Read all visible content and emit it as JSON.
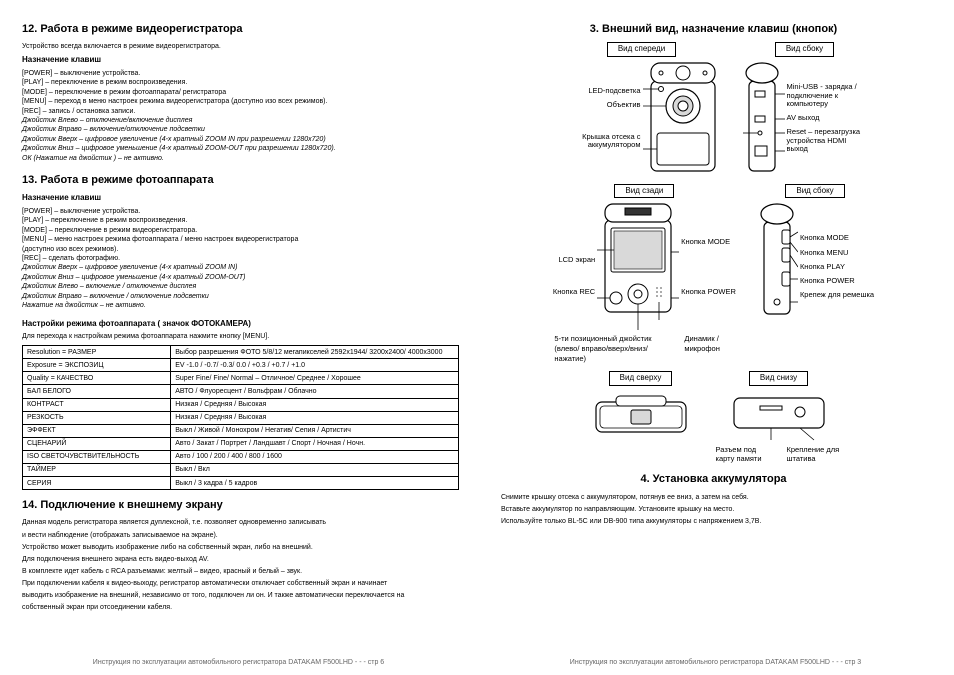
{
  "left": {
    "h12": "12. Работа в режиме видеорегистратора",
    "intro12": "Устройство всегда включается в режиме видеорегистратора.",
    "h12sub": "Назначение клавиш",
    "keys12": [
      "[POWER] – выключение устройства.",
      "[PLAY] – переключение в режим воспроизведения.",
      "[MODE] – переключение в режим фотоаппарата/ регистратора",
      "[MENU] – переход в меню настроек режима  видеорегистратора (доступно изо всех режимов).",
      "[REC] – запись / остановка записи.",
      "Джойстик Влево – отключение/включение дисплея",
      "Джойстик Вправо – включение/отключение подсветки",
      "Джойстик Вверх – цифровое увеличение (4-х кратный  ZOOM IN при разрешении 1280x720)",
      "Джойстик Вниз – цифровое уменьшение (4-х кратный ZOOM-OUT при разрешении 1280x720).",
      "ОК (Нажатие на джойстик ) – не активно."
    ],
    "h13": "13. Работа в режиме фотоаппарата",
    "h13sub": "Назначение клавиш",
    "keys13": [
      "[POWER] – выключение устройства.",
      "[PLAY] – переключение в режим воспроизведения.",
      "[MODE] – переключение в режим видеорегистратора.",
      "[MENU] – меню настроек режима фотоаппарата / меню настроек видеорегистратора",
      "(доступно изо всех режимов).",
      "[REC] – сделать фотографию.",
      "Джойстик Вверх – цифровое увеличение (4-х кратный  ZOOM IN)",
      "Джойстик Вниз – цифровое уменьшение (4-х кратный ZOOM-OUT)",
      "Джойстик Влево – включение / отключение дисплея",
      "Джойстик Вправо – включение / отключение подсветки",
      "Нажатие на джойстик – не активно."
    ],
    "h13b": "Настройки режима фотоаппарата ( значок ФОТОКАМЕРА)",
    "settingsIntro": "Для перехода к настройкам режима фотоаппарата нажмите кнопку [MENU].",
    "table": [
      [
        "Resolution = РАЗМЕР",
        "Выбор разрешения  ФОТО  5/8/12 мегапикселей 2592x1944/ 3200x2400/ 4000x3000"
      ],
      [
        "Exposure = ЭКСПОЗИЦ",
        "EV -1.0 / -0.7/ -0.3/ 0.0 / +0.3 / +0.7 / +1.0"
      ],
      [
        "Quality = КАЧЕСТВО",
        "Super Fine/ Fine/ Normal – Отличное/ Среднее / Хорошее"
      ],
      [
        "БАЛ БЕЛОГО",
        "АВТО / Флуоресцент / Вольфрам / Облачно"
      ],
      [
        "КОНТРАСТ",
        "Низкая / Средняя / Высокая"
      ],
      [
        "РЕЗКОСТЬ",
        "Низкая / Средняя / Высокая"
      ],
      [
        "ЭФФЕКТ",
        "Выкл / Живой / Монохром / Негатив/ Сепия / Артистич"
      ],
      [
        "СЦЕНАРИЙ",
        "Авто / Закат / Портрет / Ландшавт / Спорт / Ночная / Ночн."
      ],
      [
        "ISO СВЕТОЧУВСТВИТЕЛЬНОСТЬ",
        "Авто / 100 / 200 / 400 / 800 / 1600"
      ],
      [
        "ТАЙМЕР",
        "Выкл / Вкл"
      ],
      [
        "СЕРИЯ",
        "Выкл / 3 кадра / 5 кадров"
      ]
    ],
    "h14": "14.      Подключение к внешнему экрану",
    "p14": [
      "Данная модель регистратора является дуплексной, т.е. позволяет одновременно записывать",
      "и вести наблюдение (отображать записываемое на экране).",
      "Устройство может выводить изображение либо на собственный экран, либо на внешний.",
      "Для подключения внешнего экрана есть  видео-выход AV.",
      "В комплекте идет кабель с RCA разъемами: желтый – видео, красный и белый – звук.",
      "При подключении кабеля к видео-выходу, регистратор автоматически отключает собственный экран и начинает",
      "выводить изображение на внешний, независимо от того, подключен ли он. И также автоматически переключается на",
      "собственный экран при отсоединении кабеля."
    ],
    "footer": "Инструкция по эксплуатации автомобильного регистратора DATAKAM F500LHD   - - -  стр 6"
  },
  "right": {
    "h3": "3.    Внешний вид, назначение клавиш (кнопок)",
    "views": {
      "front": {
        "label": "Вид спереди",
        "left": [
          "LED-подсветка",
          "Объектив",
          "",
          "Крышка отсека с аккумулятором"
        ]
      },
      "side1": {
        "label": "Вид сбоку",
        "right": [
          "Mini-USB - зарядка / подключение к компьютеру",
          "AV выход",
          "Reset – перезагрузка устройства   HDMI выход"
        ]
      },
      "back": {
        "label": "Вид сзади",
        "left": [
          "",
          "LCD экран",
          "",
          "Кнопка REC"
        ],
        "bottom": [
          "5-ти позиционный джойстик (влево/ вправо/вверх/вниз/ нажатие)",
          "Динамик / микрофон"
        ]
      },
      "side2": {
        "label": "Вид сбоку",
        "right": [
          "Кнопка MODE",
          "Кнопка MENU",
          "Кнопка PLAY",
          "Кнопка POWER",
          "Крепеж для ремешка"
        ]
      },
      "top": {
        "label": "Вид сверху"
      },
      "bottom": {
        "label": "Вид снизу",
        "right": [
          "Разъем под карту памяти",
          "Крепление для штатива"
        ]
      }
    },
    "h4": "4.    Установка аккумулятора",
    "p4": [
      "Снимите крышку отсека с аккумулятором, потянув ее вниз, а затем на себя.",
      "Вставьте аккумулятор по направляющим. Установите крышку на место.",
      "Используйте только BL-5C или DB-900 типа аккумуляторы с напряжением 3,7В."
    ],
    "footer": "Инструкция по эксплуатации автомобильного регистратора DATAKAM  F500LHD   - - -  стр 3"
  },
  "colors": {
    "stroke": "#000000",
    "fill": "#ffffff",
    "shade": "#d9d9d9"
  }
}
